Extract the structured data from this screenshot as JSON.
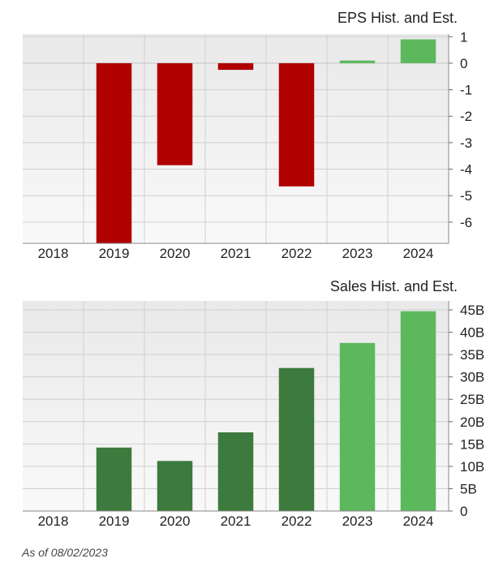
{
  "chart_data": [
    {
      "type": "bar",
      "title": "EPS Hist. and Est.",
      "categories": [
        "2018",
        "2019",
        "2020",
        "2021",
        "2022",
        "2023",
        "2024"
      ],
      "values": [
        null,
        -6.8,
        -3.85,
        -0.25,
        -4.65,
        0.1,
        0.9
      ],
      "ylim": [
        -6.8,
        1.1
      ],
      "yticks": [
        "1",
        "0",
        "-1",
        "-2",
        "-3",
        "-4",
        "-5",
        "-6"
      ],
      "grid": true,
      "colors": {
        "negative": "#b00000",
        "positive_estimate": "#5cb85c"
      }
    },
    {
      "type": "bar",
      "title": "Sales Hist. and Est.",
      "categories": [
        "2018",
        "2019",
        "2020",
        "2021",
        "2022",
        "2023",
        "2024"
      ],
      "values": [
        null,
        14.2,
        11.2,
        17.6,
        32.0,
        37.6,
        44.7
      ],
      "unit": "B",
      "ylim": [
        0,
        47
      ],
      "yticks": [
        "45B",
        "40B",
        "35B",
        "30B",
        "25B",
        "20B",
        "15B",
        "10B",
        "5B",
        "0"
      ],
      "grid": true,
      "colors": {
        "historical": "#3d7a3d",
        "estimate": "#5cb85c"
      }
    }
  ],
  "footer": {
    "as_of": "As of 08/02/2023"
  }
}
